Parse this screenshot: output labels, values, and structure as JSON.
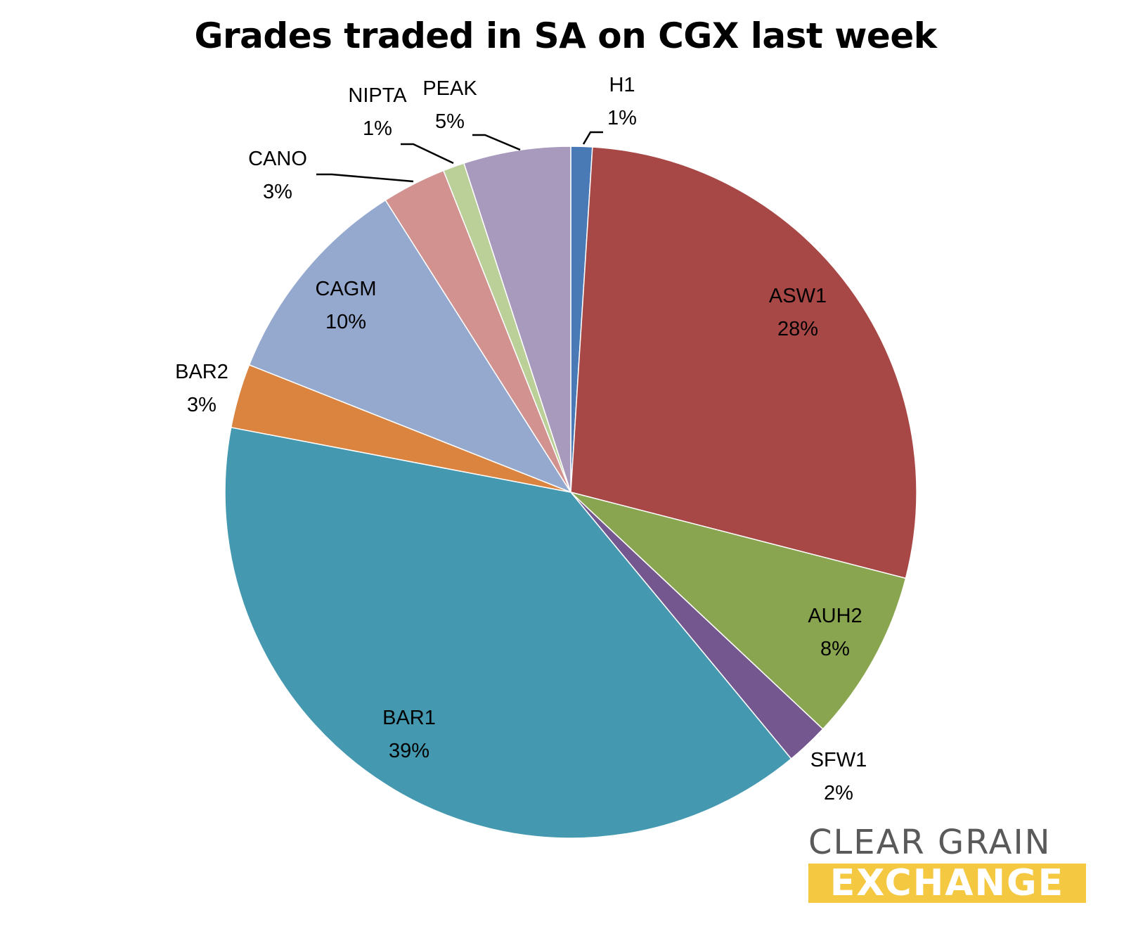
{
  "chart_data": {
    "type": "pie",
    "title": "Grades traded in SA on CGX last week",
    "slices": [
      {
        "label": "H1",
        "value": 1,
        "display": "1%",
        "color": "#4a7ab5"
      },
      {
        "label": "ASW1",
        "value": 28,
        "display": "28%",
        "color": "#a84846"
      },
      {
        "label": "AUH2",
        "value": 8,
        "display": "8%",
        "color": "#8aa54f"
      },
      {
        "label": "SFW1",
        "value": 2,
        "display": "2%",
        "color": "#73578e"
      },
      {
        "label": "BAR1",
        "value": 39,
        "display": "39%",
        "color": "#4499b0"
      },
      {
        "label": "BAR2",
        "value": 3,
        "display": "3%",
        "color": "#db8440"
      },
      {
        "label": "CAGM",
        "value": 10,
        "display": "10%",
        "color": "#95a9cf"
      },
      {
        "label": "CANO",
        "value": 3,
        "display": "3%",
        "color": "#d29290"
      },
      {
        "label": "NIPTA",
        "value": 1,
        "display": "1%",
        "color": "#bbcf98"
      },
      {
        "label": "PEAK",
        "value": 5,
        "display": "5%",
        "color": "#a89abd"
      }
    ]
  },
  "logo": {
    "line1": "CLEAR GRAIN",
    "line2": "EXCHANGE"
  }
}
